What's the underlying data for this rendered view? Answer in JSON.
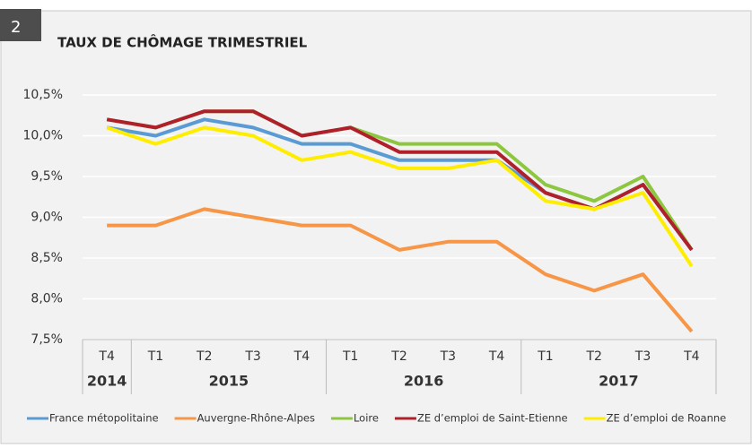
{
  "chart_data": {
    "type": "line",
    "badge": "2",
    "title": "TAUX DE CHÔMAGE TRIMESTRIEL",
    "groups": [
      {
        "label": "2014",
        "categories": [
          "T4"
        ]
      },
      {
        "label": "2015",
        "categories": [
          "T1",
          "T2",
          "T3",
          "T4"
        ]
      },
      {
        "label": "2016",
        "categories": [
          "T1",
          "T2",
          "T3",
          "T4"
        ]
      },
      {
        "label": "2017",
        "categories": [
          "T1",
          "T2",
          "T3",
          "T4"
        ]
      }
    ],
    "series": [
      {
        "name": "France métopolitaine",
        "color": "#5b9bd5",
        "values": [
          10.1,
          10.0,
          10.2,
          10.1,
          9.9,
          9.9,
          9.7,
          9.7,
          9.7,
          9.3,
          9.1,
          9.4,
          8.6
        ]
      },
      {
        "name": "Auvergne-Rhône-Alpes",
        "color": "#f79646",
        "values": [
          8.9,
          8.9,
          9.1,
          9.0,
          8.9,
          8.9,
          8.6,
          8.7,
          8.7,
          8.3,
          8.1,
          8.3,
          7.6
        ]
      },
      {
        "name": "Loire",
        "color": "#8dc63f",
        "values": [
          10.2,
          10.1,
          10.3,
          10.3,
          10.0,
          10.1,
          9.9,
          9.9,
          9.9,
          9.4,
          9.2,
          9.5,
          8.6
        ]
      },
      {
        "name": "ZE d’emploi de Saint-Etienne",
        "color": "#b0202a",
        "values": [
          10.2,
          10.1,
          10.3,
          10.3,
          10.0,
          10.1,
          9.8,
          9.8,
          9.8,
          9.3,
          9.1,
          9.4,
          8.6
        ]
      },
      {
        "name": "ZE d’emploi de Roanne",
        "color": "#ffed00",
        "values": [
          10.1,
          9.9,
          10.1,
          10.0,
          9.7,
          9.8,
          9.6,
          9.6,
          9.7,
          9.2,
          9.1,
          9.3,
          8.4
        ]
      }
    ],
    "ylim": [
      7.5,
      10.5
    ],
    "yticks": [
      {
        "value": 7.5,
        "label": "7,5%"
      },
      {
        "value": 8.0,
        "label": "8,0%"
      },
      {
        "value": 8.5,
        "label": "8,5%"
      },
      {
        "value": 9.0,
        "label": "9,0%"
      },
      {
        "value": 9.5,
        "label": "9,5%"
      },
      {
        "value": 10.0,
        "label": "10,0%"
      },
      {
        "value": 10.5,
        "label": "10,5%"
      }
    ],
    "grid": true,
    "legend": "bottom"
  }
}
